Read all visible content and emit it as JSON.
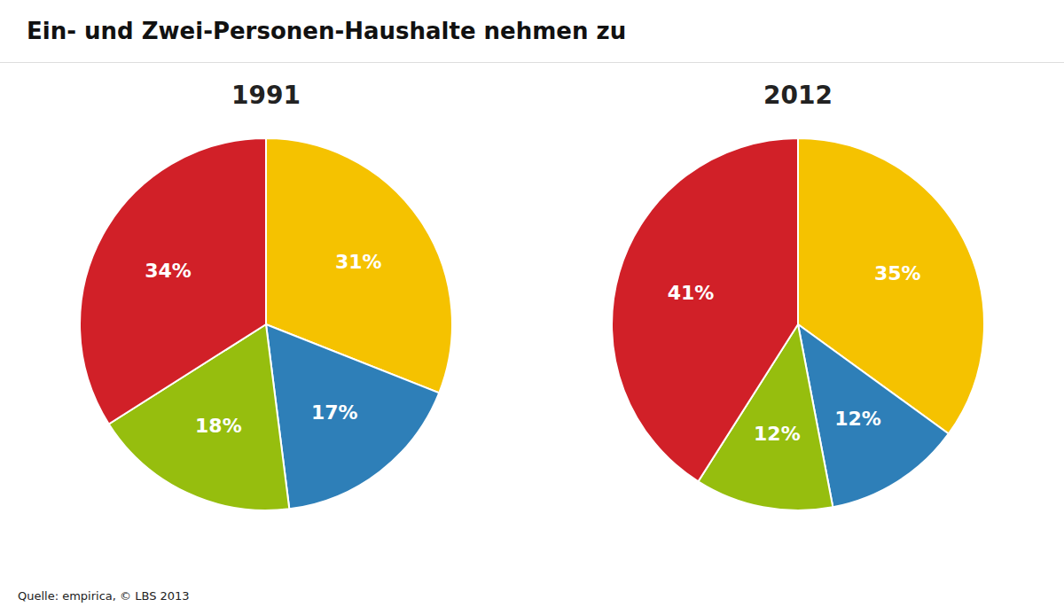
{
  "title": "Ein- und Zwei-Personen-Haushalte nehmen zu",
  "annotations": [
    "Quelle: empirica, © LBS 2013"
  ],
  "chart_data": [
    {
      "type": "pie",
      "title": "1991",
      "values": [
        31,
        17,
        18,
        34
      ],
      "value_labels": [
        "31%",
        "17%",
        "18%",
        "34%"
      ],
      "colors": [
        "#f5c200",
        "#2e7fb8",
        "#96be0e",
        "#d12028"
      ],
      "data_labels": true
    },
    {
      "type": "pie",
      "title": "2012",
      "values": [
        35,
        12,
        12,
        41
      ],
      "value_labels": [
        "35%",
        "12%",
        "12%",
        "41%"
      ],
      "colors": [
        "#f5c200",
        "#2e7fb8",
        "#96be0e",
        "#d12028"
      ],
      "data_labels": true
    }
  ]
}
